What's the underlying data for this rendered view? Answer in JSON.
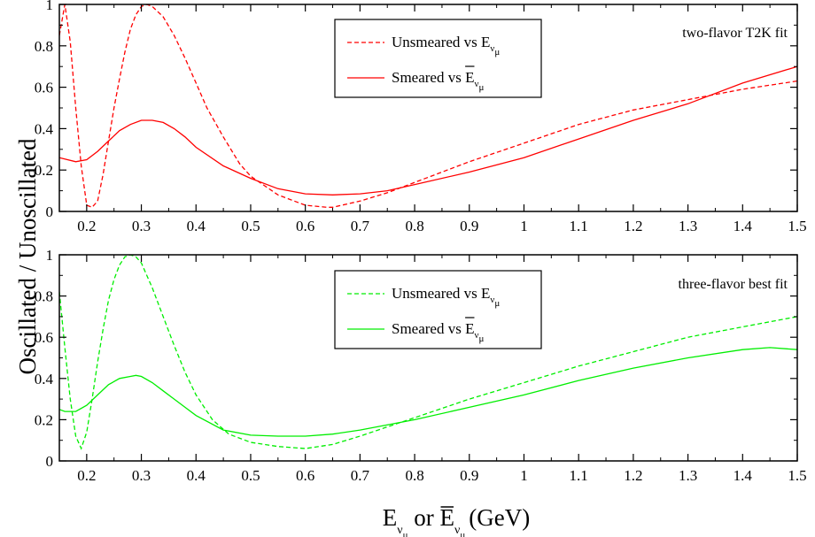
{
  "chart_data": [
    {
      "type": "line",
      "annotation": "two-flavor T2K fit",
      "xlim": [
        0.15,
        1.5
      ],
      "ylim": [
        0,
        1
      ],
      "xticks": [
        "0.2",
        "0.3",
        "0.4",
        "0.5",
        "0.6",
        "0.7",
        "0.8",
        "0.9",
        "1",
        "1.1",
        "1.2",
        "1.3",
        "1.4",
        "1.5"
      ],
      "yticks": [
        "0",
        "0.2",
        "0.4",
        "0.6",
        "0.8",
        "1"
      ],
      "color": "#ff0000",
      "series": [
        {
          "name": "Unsmeared vs E",
          "name_sub": "ν",
          "name_sub2": "μ",
          "dash": true,
          "x": [
            0.15,
            0.16,
            0.17,
            0.18,
            0.19,
            0.2,
            0.21,
            0.22,
            0.23,
            0.24,
            0.25,
            0.26,
            0.27,
            0.28,
            0.29,
            0.3,
            0.31,
            0.32,
            0.34,
            0.36,
            0.38,
            0.4,
            0.42,
            0.45,
            0.48,
            0.5,
            0.55,
            0.6,
            0.64,
            0.65,
            0.7,
            0.75,
            0.8,
            0.85,
            0.9,
            1.0,
            1.1,
            1.2,
            1.3,
            1.4,
            1.5
          ],
          "y": [
            0.85,
            1.0,
            0.82,
            0.5,
            0.22,
            0.03,
            0.02,
            0.05,
            0.18,
            0.34,
            0.5,
            0.64,
            0.77,
            0.88,
            0.95,
            0.99,
            1.0,
            0.99,
            0.94,
            0.85,
            0.74,
            0.62,
            0.5,
            0.36,
            0.23,
            0.17,
            0.08,
            0.03,
            0.02,
            0.02,
            0.05,
            0.09,
            0.14,
            0.19,
            0.24,
            0.33,
            0.42,
            0.49,
            0.54,
            0.59,
            0.63
          ]
        },
        {
          "name": "Smeared vs ",
          "name_bar": "E",
          "name_sub": "ν",
          "name_sub2": "μ",
          "dash": false,
          "x": [
            0.15,
            0.18,
            0.2,
            0.22,
            0.24,
            0.26,
            0.28,
            0.3,
            0.32,
            0.34,
            0.36,
            0.38,
            0.4,
            0.45,
            0.5,
            0.55,
            0.6,
            0.65,
            0.7,
            0.75,
            0.8,
            0.9,
            1.0,
            1.1,
            1.2,
            1.3,
            1.4,
            1.5
          ],
          "y": [
            0.26,
            0.24,
            0.25,
            0.29,
            0.34,
            0.39,
            0.42,
            0.44,
            0.44,
            0.43,
            0.4,
            0.36,
            0.31,
            0.22,
            0.16,
            0.11,
            0.085,
            0.08,
            0.085,
            0.1,
            0.13,
            0.19,
            0.26,
            0.35,
            0.44,
            0.52,
            0.62,
            0.7
          ]
        }
      ]
    },
    {
      "type": "line",
      "annotation": "three-flavor best fit",
      "xlim": [
        0.15,
        1.5
      ],
      "ylim": [
        0,
        1
      ],
      "xticks": [
        "0.2",
        "0.3",
        "0.4",
        "0.5",
        "0.6",
        "0.7",
        "0.8",
        "0.9",
        "1",
        "1.1",
        "1.2",
        "1.3",
        "1.4",
        "1.5"
      ],
      "yticks": [
        "0",
        "0.2",
        "0.4",
        "0.6",
        "0.8",
        "1"
      ],
      "color": "#00ee00",
      "series": [
        {
          "name": "Unsmeared vs E",
          "name_sub": "ν",
          "name_sub2": "μ",
          "dash": true,
          "x": [
            0.15,
            0.16,
            0.17,
            0.18,
            0.19,
            0.2,
            0.21,
            0.22,
            0.23,
            0.24,
            0.25,
            0.26,
            0.27,
            0.28,
            0.29,
            0.3,
            0.31,
            0.32,
            0.34,
            0.36,
            0.38,
            0.4,
            0.43,
            0.46,
            0.5,
            0.55,
            0.6,
            0.65,
            0.7,
            0.8,
            0.9,
            1.0,
            1.1,
            1.2,
            1.3,
            1.4,
            1.5
          ],
          "y": [
            0.82,
            0.55,
            0.3,
            0.12,
            0.06,
            0.14,
            0.3,
            0.48,
            0.64,
            0.78,
            0.88,
            0.95,
            0.99,
            1.0,
            0.99,
            0.96,
            0.9,
            0.84,
            0.7,
            0.56,
            0.43,
            0.32,
            0.2,
            0.13,
            0.09,
            0.07,
            0.06,
            0.08,
            0.12,
            0.21,
            0.3,
            0.38,
            0.46,
            0.53,
            0.6,
            0.65,
            0.7
          ]
        },
        {
          "name": "Smeared vs ",
          "name_bar": "E",
          "name_sub": "ν",
          "name_sub2": "μ",
          "dash": false,
          "x": [
            0.15,
            0.16,
            0.18,
            0.2,
            0.22,
            0.24,
            0.26,
            0.28,
            0.29,
            0.3,
            0.32,
            0.34,
            0.36,
            0.38,
            0.4,
            0.45,
            0.5,
            0.55,
            0.6,
            0.65,
            0.7,
            0.8,
            0.9,
            1.0,
            1.1,
            1.2,
            1.3,
            1.4,
            1.45,
            1.5
          ],
          "y": [
            0.25,
            0.24,
            0.24,
            0.27,
            0.32,
            0.37,
            0.4,
            0.41,
            0.415,
            0.41,
            0.38,
            0.34,
            0.3,
            0.26,
            0.22,
            0.15,
            0.125,
            0.12,
            0.12,
            0.13,
            0.15,
            0.2,
            0.26,
            0.32,
            0.39,
            0.45,
            0.5,
            0.54,
            0.55,
            0.54
          ]
        }
      ]
    }
  ],
  "y_axis_title": "Oscillated / Unoscillated",
  "x_axis_title": {
    "part1": "E",
    "sub": "ν",
    "sub2": "μ",
    "part2": " or ",
    "bar": "E",
    "sub_b": "ν",
    "sub2_b": "μ",
    "part3": "(GeV)"
  }
}
